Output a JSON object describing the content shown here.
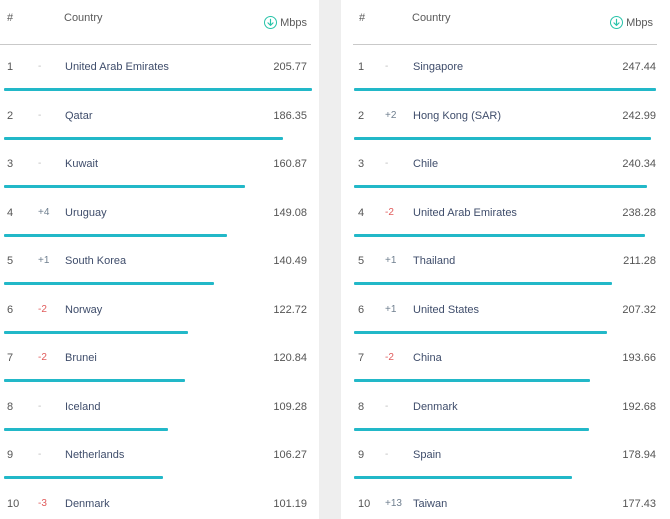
{
  "header": {
    "rank_label": "#",
    "country_label": "Country",
    "speed_label": "Mbps",
    "speed_icon": "arrow-down-circle-icon"
  },
  "colors": {
    "bar": "#22b8c8",
    "icon_accent": "#27c3a9",
    "change_down": "#e05b5b",
    "change_up": "#6f7f8f",
    "change_same": "#bdbdbd"
  },
  "left_table": {
    "max_speed": 205.77,
    "rows": [
      {
        "rank": "1",
        "change": "-",
        "country": "United Arab Emirates",
        "speed": "205.77"
      },
      {
        "rank": "2",
        "change": "-",
        "country": "Qatar",
        "speed": "186.35"
      },
      {
        "rank": "3",
        "change": "-",
        "country": "Kuwait",
        "speed": "160.87"
      },
      {
        "rank": "4",
        "change": "+4",
        "country": "Uruguay",
        "speed": "149.08"
      },
      {
        "rank": "5",
        "change": "+1",
        "country": "South Korea",
        "speed": "140.49"
      },
      {
        "rank": "6",
        "change": "-2",
        "country": "Norway",
        "speed": "122.72"
      },
      {
        "rank": "7",
        "change": "-2",
        "country": "Brunei",
        "speed": "120.84"
      },
      {
        "rank": "8",
        "change": "-",
        "country": "Iceland",
        "speed": "109.28"
      },
      {
        "rank": "9",
        "change": "-",
        "country": "Netherlands",
        "speed": "106.27"
      },
      {
        "rank": "10",
        "change": "-3",
        "country": "Denmark",
        "speed": "101.19"
      }
    ]
  },
  "right_table": {
    "max_speed": 247.44,
    "rows": [
      {
        "rank": "1",
        "change": "-",
        "country": "Singapore",
        "speed": "247.44"
      },
      {
        "rank": "2",
        "change": "+2",
        "country": "Hong Kong (SAR)",
        "speed": "242.99"
      },
      {
        "rank": "3",
        "change": "-",
        "country": "Chile",
        "speed": "240.34"
      },
      {
        "rank": "4",
        "change": "-2",
        "country": "United Arab Emirates",
        "speed": "238.28"
      },
      {
        "rank": "5",
        "change": "+1",
        "country": "Thailand",
        "speed": "211.28"
      },
      {
        "rank": "6",
        "change": "+1",
        "country": "United States",
        "speed": "207.32"
      },
      {
        "rank": "7",
        "change": "-2",
        "country": "China",
        "speed": "193.66"
      },
      {
        "rank": "8",
        "change": "-",
        "country": "Denmark",
        "speed": "192.68"
      },
      {
        "rank": "9",
        "change": "-",
        "country": "Spain",
        "speed": "178.94"
      },
      {
        "rank": "10",
        "change": "+13",
        "country": "Taiwan",
        "speed": "177.43"
      }
    ]
  }
}
